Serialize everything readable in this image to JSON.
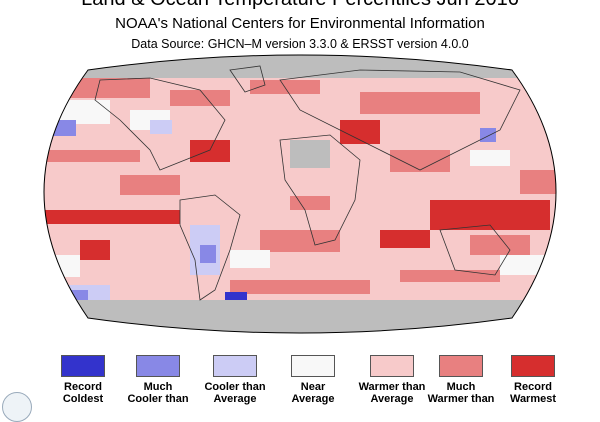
{
  "header": {
    "title": "Land & Ocean Temperature Percentiles Jun 2016",
    "subtitle": "NOAA's National Centers for Environmental Information",
    "source": "Data Source: GHCN–M version 3.3.0 & ERSST version 4.0.0"
  },
  "legend": [
    {
      "line1": "Record",
      "line2": "Coldest",
      "color": "#3333cc"
    },
    {
      "line1": "Much",
      "line2": "Cooler than",
      "color": "#8888e6"
    },
    {
      "line1": "Cooler than",
      "line2": "Average",
      "color": "#ccccf5"
    },
    {
      "line1": "Near",
      "line2": "Average",
      "color": "#f8f8f8"
    },
    {
      "line1": "Warmer than",
      "line2": "Average",
      "color": "#f7caca"
    },
    {
      "line1": "Much",
      "line2": "Warmer than",
      "color": "#e88080"
    },
    {
      "line1": "Record",
      "line2": "Warmest",
      "color": "#d62e2e"
    }
  ],
  "map": {
    "projection": "Robinson",
    "missing_color": "#bdbdbd",
    "ocean_base_color": "#f7caca"
  }
}
